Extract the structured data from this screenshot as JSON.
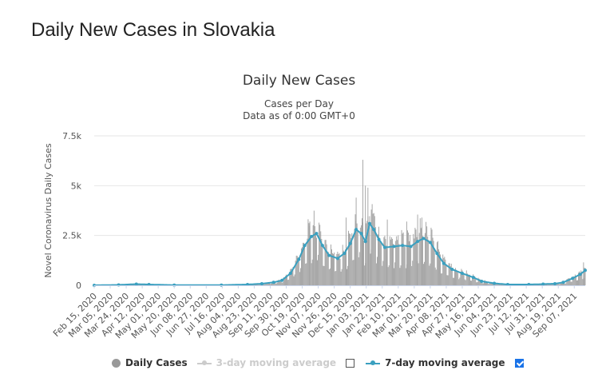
{
  "page_title": "Daily New Cases in Slovakia",
  "chart_data": {
    "type": "bar",
    "title": "Daily New Cases",
    "subtitle_line1": "Cases per Day",
    "subtitle_line2": "Data as of 0:00 GMT+0",
    "ylabel": "Novel Coronavirus Daily Cases",
    "xlabel": "",
    "ylim": [
      0,
      7500
    ],
    "yticks": [
      0,
      2500,
      5000,
      7500
    ],
    "ytick_labels": [
      "0",
      "2.5k",
      "5k",
      "7.5k"
    ],
    "x_start": "2020-02-15",
    "x_end": "2021-09-20",
    "xtick_labels": [
      "Feb 15, 2020",
      "Mar 05, 2020",
      "Mar 24, 2020",
      "Apr 12, 2020",
      "May 01, 2020",
      "May 20, 2020",
      "Jun 08, 2020",
      "Jun 27, 2020",
      "Jul 16, 2020",
      "Aug 04, 2020",
      "Aug 23, 2020",
      "Sep 11, 2020",
      "Sep 30, 2020",
      "Oct 19, 2020",
      "Nov 07, 2020",
      "Nov 26, 2020",
      "Dec 15, 2020",
      "Jan 03, 2021",
      "Jan 22, 2021",
      "Feb 10, 2021",
      "Mar 01, 2021",
      "Mar 20, 2021",
      "Apr 08, 2021",
      "Apr 27, 2021",
      "May 16, 2021",
      "Jun 04, 2021",
      "Jun 23, 2021",
      "Jul 12, 2021",
      "Jul 31, 2021",
      "Aug 19, 2021",
      "Sep 07, 2021"
    ],
    "grid": true,
    "legend_placement": "bottom",
    "series": [
      {
        "name": "Daily Cases",
        "kind": "bar",
        "color": "#999999",
        "visible": true
      },
      {
        "name": "3-day moving average",
        "kind": "line",
        "color": "#cccccc",
        "visible": false
      },
      {
        "name": "7-day moving average",
        "kind": "line",
        "color": "#3aa0c0",
        "visible": true
      }
    ],
    "seven_day_average_points": [
      {
        "x": "2020-02-15",
        "y": 0
      },
      {
        "x": "2020-03-15",
        "y": 20
      },
      {
        "x": "2020-04-05",
        "y": 60
      },
      {
        "x": "2020-04-20",
        "y": 40
      },
      {
        "x": "2020-05-20",
        "y": 10
      },
      {
        "x": "2020-07-15",
        "y": 10
      },
      {
        "x": "2020-08-15",
        "y": 40
      },
      {
        "x": "2020-09-01",
        "y": 80
      },
      {
        "x": "2020-09-15",
        "y": 150
      },
      {
        "x": "2020-09-25",
        "y": 250
      },
      {
        "x": "2020-10-05",
        "y": 600
      },
      {
        "x": "2020-10-15",
        "y": 1300
      },
      {
        "x": "2020-10-22",
        "y": 2000
      },
      {
        "x": "2020-10-30",
        "y": 2450
      },
      {
        "x": "2020-11-05",
        "y": 2600
      },
      {
        "x": "2020-11-12",
        "y": 2000
      },
      {
        "x": "2020-11-20",
        "y": 1500
      },
      {
        "x": "2020-11-30",
        "y": 1350
      },
      {
        "x": "2020-12-08",
        "y": 1600
      },
      {
        "x": "2020-12-15",
        "y": 2100
      },
      {
        "x": "2020-12-22",
        "y": 2800
      },
      {
        "x": "2020-12-28",
        "y": 2600
      },
      {
        "x": "2021-01-02",
        "y": 2200
      },
      {
        "x": "2021-01-07",
        "y": 3100
      },
      {
        "x": "2021-01-12",
        "y": 2800
      },
      {
        "x": "2021-01-18",
        "y": 2300
      },
      {
        "x": "2021-01-25",
        "y": 1900
      },
      {
        "x": "2021-02-05",
        "y": 1950
      },
      {
        "x": "2021-02-15",
        "y": 2000
      },
      {
        "x": "2021-02-25",
        "y": 1950
      },
      {
        "x": "2021-03-05",
        "y": 2200
      },
      {
        "x": "2021-03-12",
        "y": 2350
      },
      {
        "x": "2021-03-20",
        "y": 2150
      },
      {
        "x": "2021-03-28",
        "y": 1600
      },
      {
        "x": "2021-04-05",
        "y": 1100
      },
      {
        "x": "2021-04-15",
        "y": 800
      },
      {
        "x": "2021-04-27",
        "y": 600
      },
      {
        "x": "2021-05-10",
        "y": 400
      },
      {
        "x": "2021-05-20",
        "y": 200
      },
      {
        "x": "2021-06-04",
        "y": 100
      },
      {
        "x": "2021-06-20",
        "y": 40
      },
      {
        "x": "2021-07-15",
        "y": 40
      },
      {
        "x": "2021-08-01",
        "y": 60
      },
      {
        "x": "2021-08-15",
        "y": 80
      },
      {
        "x": "2021-08-25",
        "y": 150
      },
      {
        "x": "2021-09-05",
        "y": 350
      },
      {
        "x": "2021-09-14",
        "y": 550
      },
      {
        "x": "2021-09-20",
        "y": 750
      }
    ],
    "daily_case_spikes": [
      {
        "x": "2020-10-28",
        "y": 3200
      },
      {
        "x": "2020-11-01",
        "y": 3000
      },
      {
        "x": "2020-12-10",
        "y": 3400
      },
      {
        "x": "2020-12-22",
        "y": 4400
      },
      {
        "x": "2020-12-30",
        "y": 6300
      },
      {
        "x": "2021-01-02",
        "y": 5000
      },
      {
        "x": "2021-01-05",
        "y": 4900
      },
      {
        "x": "2021-01-09",
        "y": 3800
      },
      {
        "x": "2021-01-28",
        "y": 3300
      },
      {
        "x": "2021-02-20",
        "y": 3200
      },
      {
        "x": "2021-03-05",
        "y": 3550
      },
      {
        "x": "2021-03-10",
        "y": 3400
      },
      {
        "x": "2021-09-18",
        "y": 1150
      }
    ]
  },
  "legend": {
    "daily_label": "Daily Cases",
    "ma3_label": "3-day moving average",
    "ma7_label": "7-day moving average",
    "ma3_checked": false,
    "ma7_checked": true
  }
}
